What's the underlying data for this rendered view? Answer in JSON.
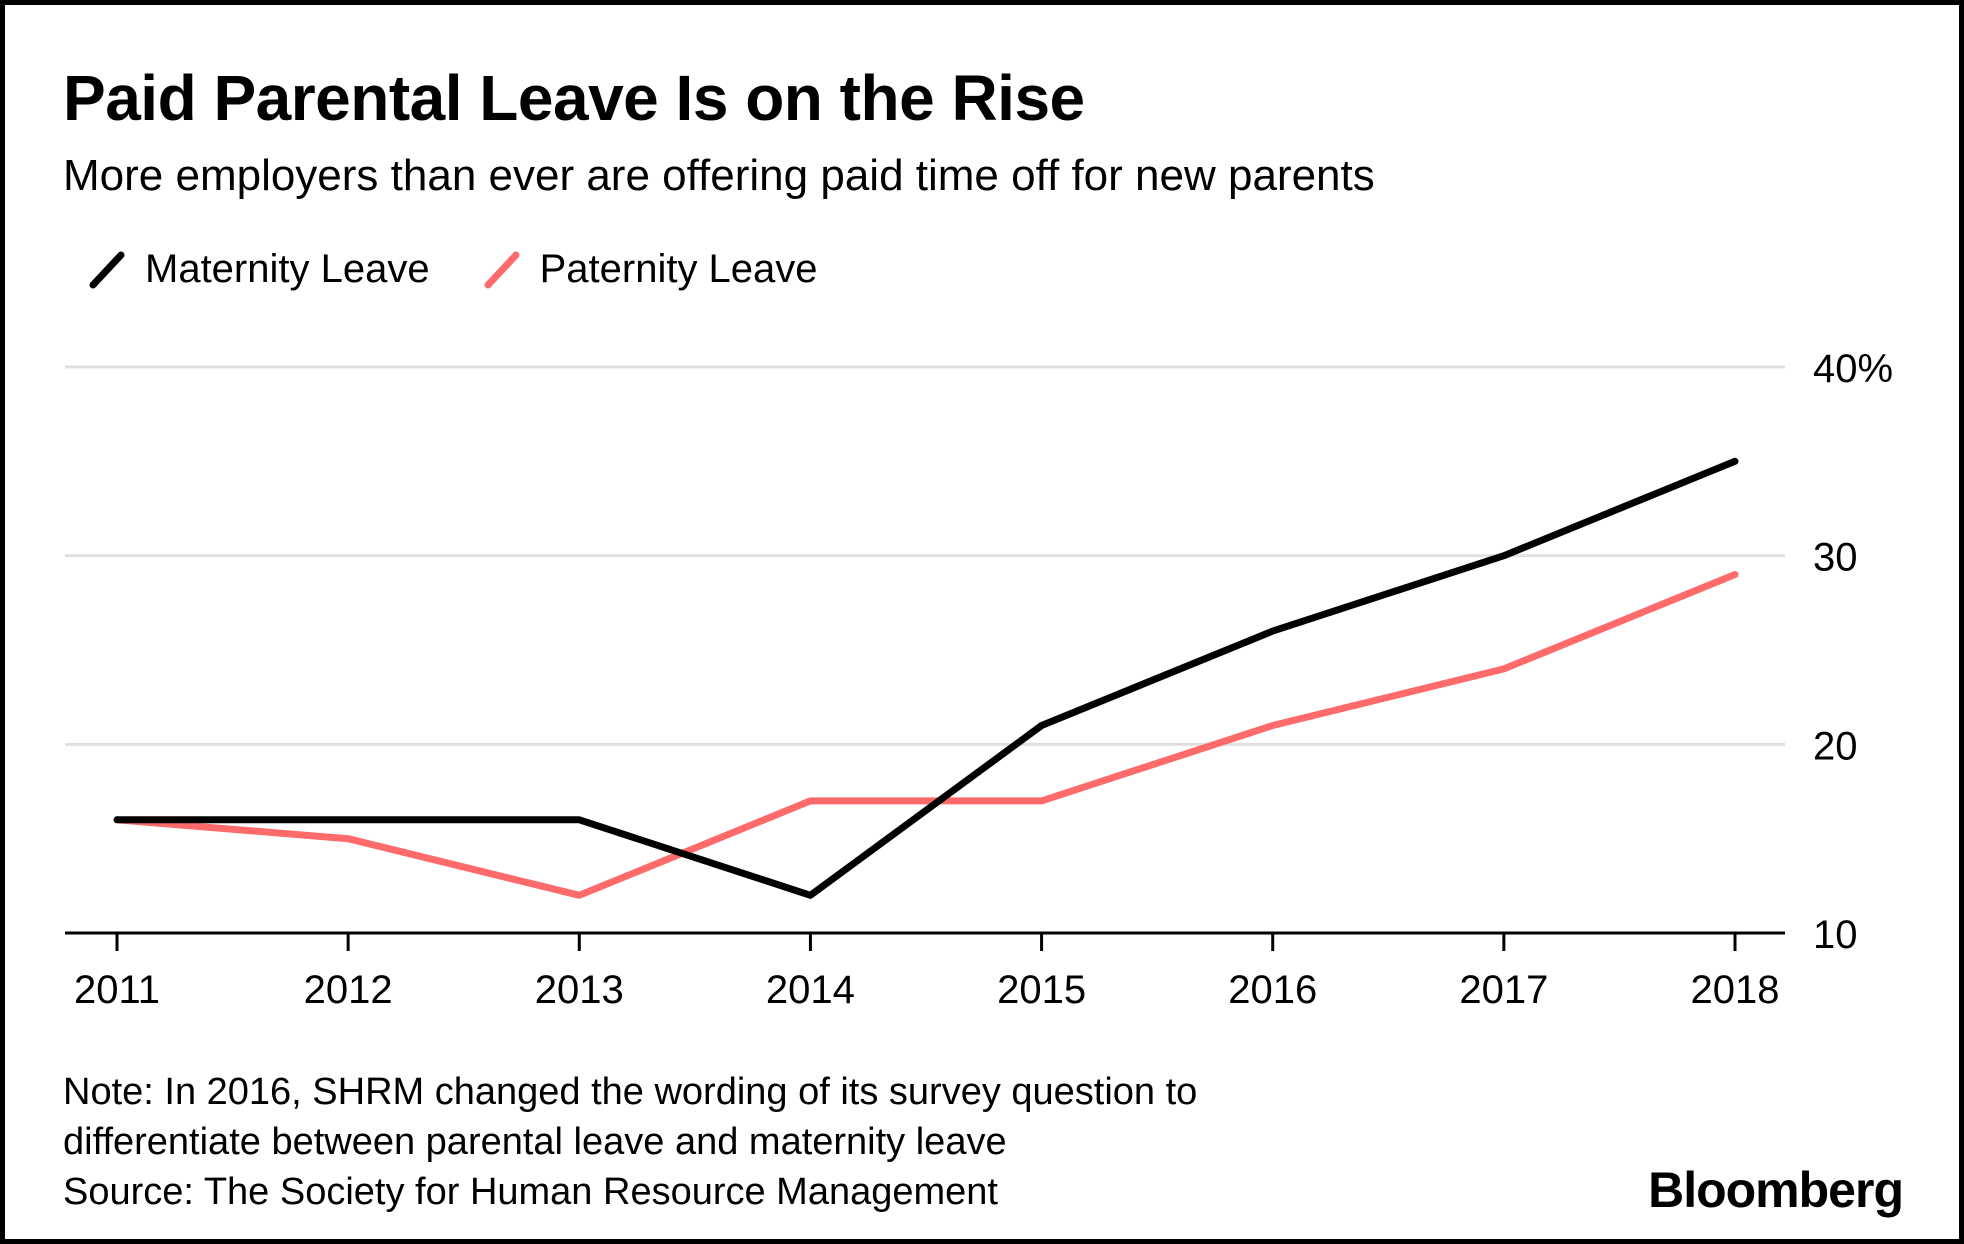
{
  "title": "Paid Parental Leave Is on the Rise",
  "subtitle": "More employers than ever are offering paid time off for new parents",
  "footnote": {
    "note_line1": "Note: In 2016, SHRM changed the wording of its survey question to",
    "note_line2": "differentiate between parental leave and maternity leave",
    "source": "Source: The Society for Human Resource Management"
  },
  "brand": "Bloomberg",
  "colors": {
    "maternity": "#000000",
    "paternity": "#ff6b6b",
    "grid": "#e0e0e0",
    "axis": "#000000"
  },
  "chart_data": {
    "type": "line",
    "title": "Paid Parental Leave Is on the Rise",
    "subtitle": "More employers than ever are offering paid time off for new parents",
    "x": [
      2011,
      2012,
      2013,
      2014,
      2015,
      2016,
      2017,
      2018
    ],
    "x_tick_labels": [
      "2011",
      "2012",
      "2013",
      "2014",
      "2015",
      "2016",
      "2017",
      "2018"
    ],
    "series": [
      {
        "name": "Maternity Leave",
        "color": "#000000",
        "values": [
          16,
          16,
          16,
          12,
          21,
          26,
          30,
          35
        ]
      },
      {
        "name": "Paternity Leave",
        "color": "#ff6b6b",
        "values": [
          16,
          15,
          12,
          17,
          17,
          21,
          24,
          29
        ]
      }
    ],
    "ylim": [
      10,
      40
    ],
    "y_ticks": [
      10,
      20,
      30,
      40
    ],
    "y_tick_labels": [
      "10",
      "20",
      "30",
      "40%"
    ],
    "y_axis_position": "right",
    "grid": true,
    "legend_placement": "top-left",
    "xlabel": "",
    "ylabel": ""
  }
}
